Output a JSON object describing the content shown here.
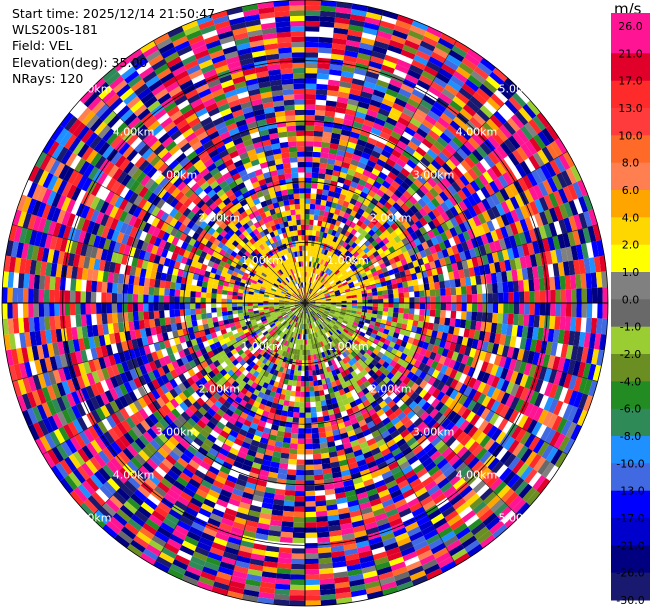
{
  "info": {
    "start_time": "Start time: 2025/12/14 21:50:47",
    "instrument": "WLS200s-181",
    "field": "Field: VEL",
    "elevation": "Elevation(deg): 35.00",
    "nrays": "NRays: 120"
  },
  "chart_data": {
    "type": "heatmap",
    "projection": "polar-ppi",
    "field": "VEL",
    "nrays": 120,
    "elevation_deg": 35.0,
    "max_range_km": 5.0,
    "range_ring_labels": [
      "1.00km",
      "2.00km",
      "3.00km",
      "4.00km",
      "5.00km"
    ],
    "colorbar": {
      "unit": "m/s",
      "tick_labels": [
        "26.0",
        "21.0",
        "17.0",
        "13.0",
        "10.0",
        "8.0",
        "6.0",
        "4.0",
        "2.0",
        "1.0",
        "0.0",
        "-1.0",
        "-2.0",
        "-4.0",
        "-6.0",
        "-8.0",
        "-10.0",
        "-13.0",
        "-17.0",
        "-21.0",
        "-26.0",
        "-30.0"
      ],
      "colors": [
        "#ff1493",
        "#ff1493",
        "#e0002a",
        "#ff2a2a",
        "#ff3b3b",
        "#ff6a28",
        "#ff7f50",
        "#ffa500",
        "#ffd700",
        "#ffff00",
        "#808080",
        "#696969",
        "#9acd32",
        "#6b8e23",
        "#228b22",
        "#2e8b57",
        "#1e90ff",
        "#4169e1",
        "#0000ff",
        "#0000cd",
        "#000080",
        "#191970"
      ]
    },
    "velocity_notes": {
      "near_range_km": 1.0,
      "near_positive_sector": "north",
      "near_positive_value": 2.0,
      "near_negative_sector": "south",
      "near_negative_value": -2.0
    }
  }
}
